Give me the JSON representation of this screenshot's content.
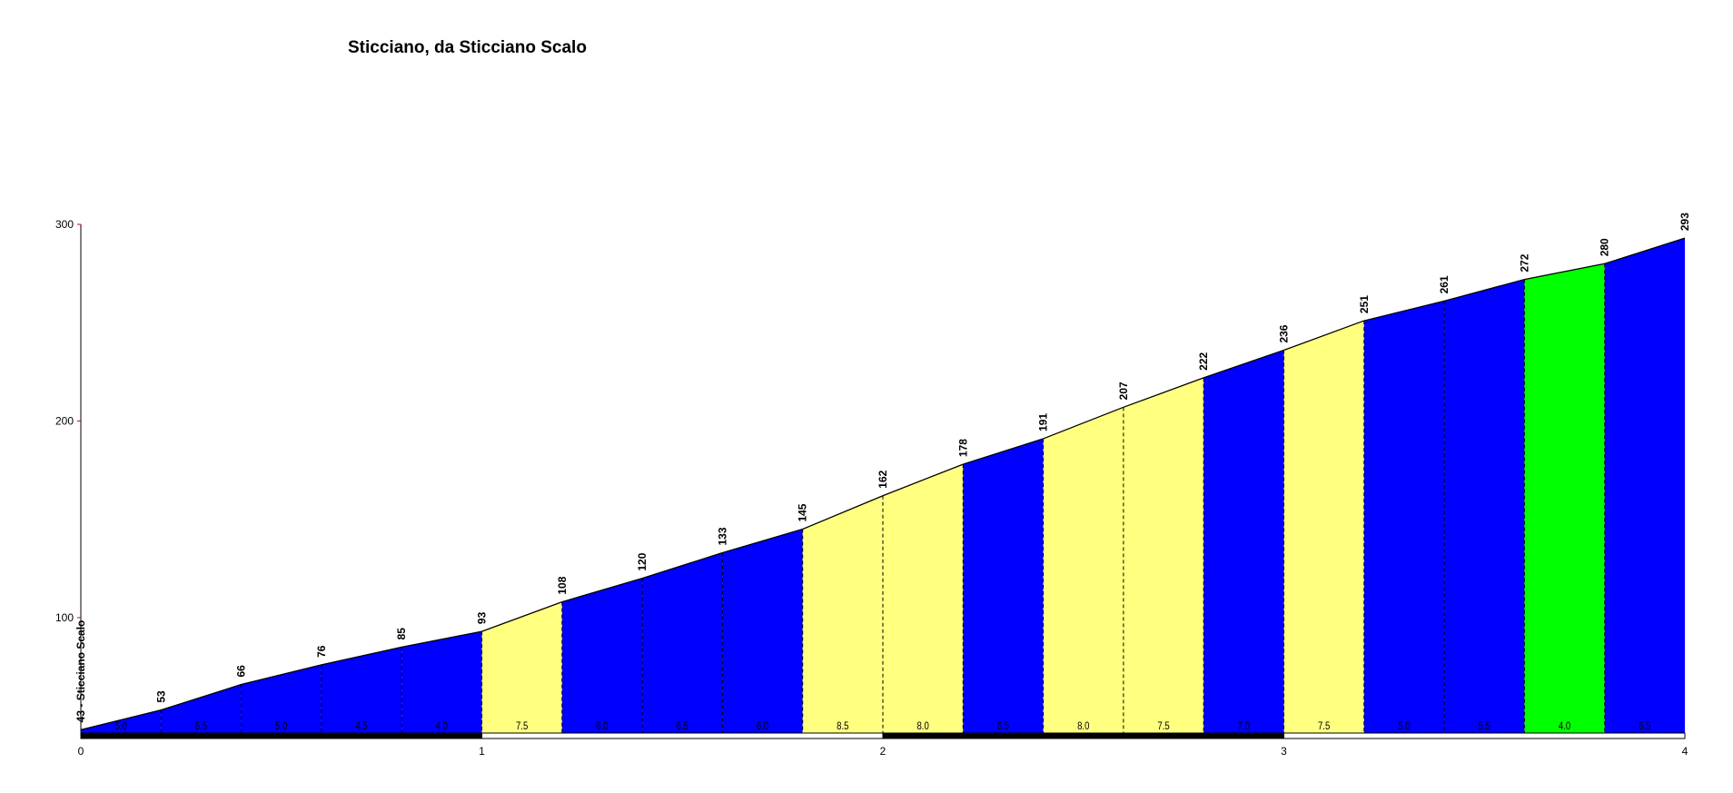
{
  "chart_data": {
    "type": "area",
    "title": "Sticciano, da Sticciano Scalo",
    "xlabel": "",
    "ylabel": "",
    "xlim": [
      0,
      4
    ],
    "ylim": [
      41.3,
      300
    ],
    "x_ticks": [
      "0",
      "1",
      "2",
      "3",
      "4"
    ],
    "y_ticks": [
      "100",
      "200",
      "300"
    ],
    "start_label": "43 - Sticciano Scalo",
    "x": [
      0,
      0.2,
      0.4,
      0.6,
      0.8,
      1.0,
      1.2,
      1.4,
      1.6,
      1.8,
      2.0,
      2.2,
      2.4,
      2.6,
      2.8,
      3.0,
      3.2,
      3.4,
      3.6,
      3.8,
      4.0
    ],
    "elevations": [
      43,
      53,
      66,
      76,
      85,
      93,
      108,
      120,
      133,
      145,
      162,
      178,
      191,
      207,
      222,
      236,
      251,
      261,
      272,
      280,
      293
    ],
    "gradients": [
      "5.0",
      "6.5",
      "5.0",
      "4.5",
      "4.0",
      "7.5",
      "6.0",
      "6.5",
      "6.0",
      "8.5",
      "8.0",
      "6.5",
      "8.0",
      "7.5",
      "7.0",
      "7.5",
      "5.0",
      "5.5",
      "4.0",
      "6.5"
    ],
    "segment_colors": [
      "#0000ff",
      "#0000ff",
      "#0000ff",
      "#0000ff",
      "#0000ff",
      "#ffff80",
      "#0000ff",
      "#0000ff",
      "#0000ff",
      "#ffff80",
      "#ffff80",
      "#0000ff",
      "#ffff80",
      "#ffff80",
      "#0000ff",
      "#ffff80",
      "#0000ff",
      "#0000ff",
      "#00ff00",
      "#0000ff"
    ],
    "km_strip_colors": [
      "#000000",
      "#ffffff",
      "#000000",
      "#ffffff"
    ],
    "grid": false
  }
}
